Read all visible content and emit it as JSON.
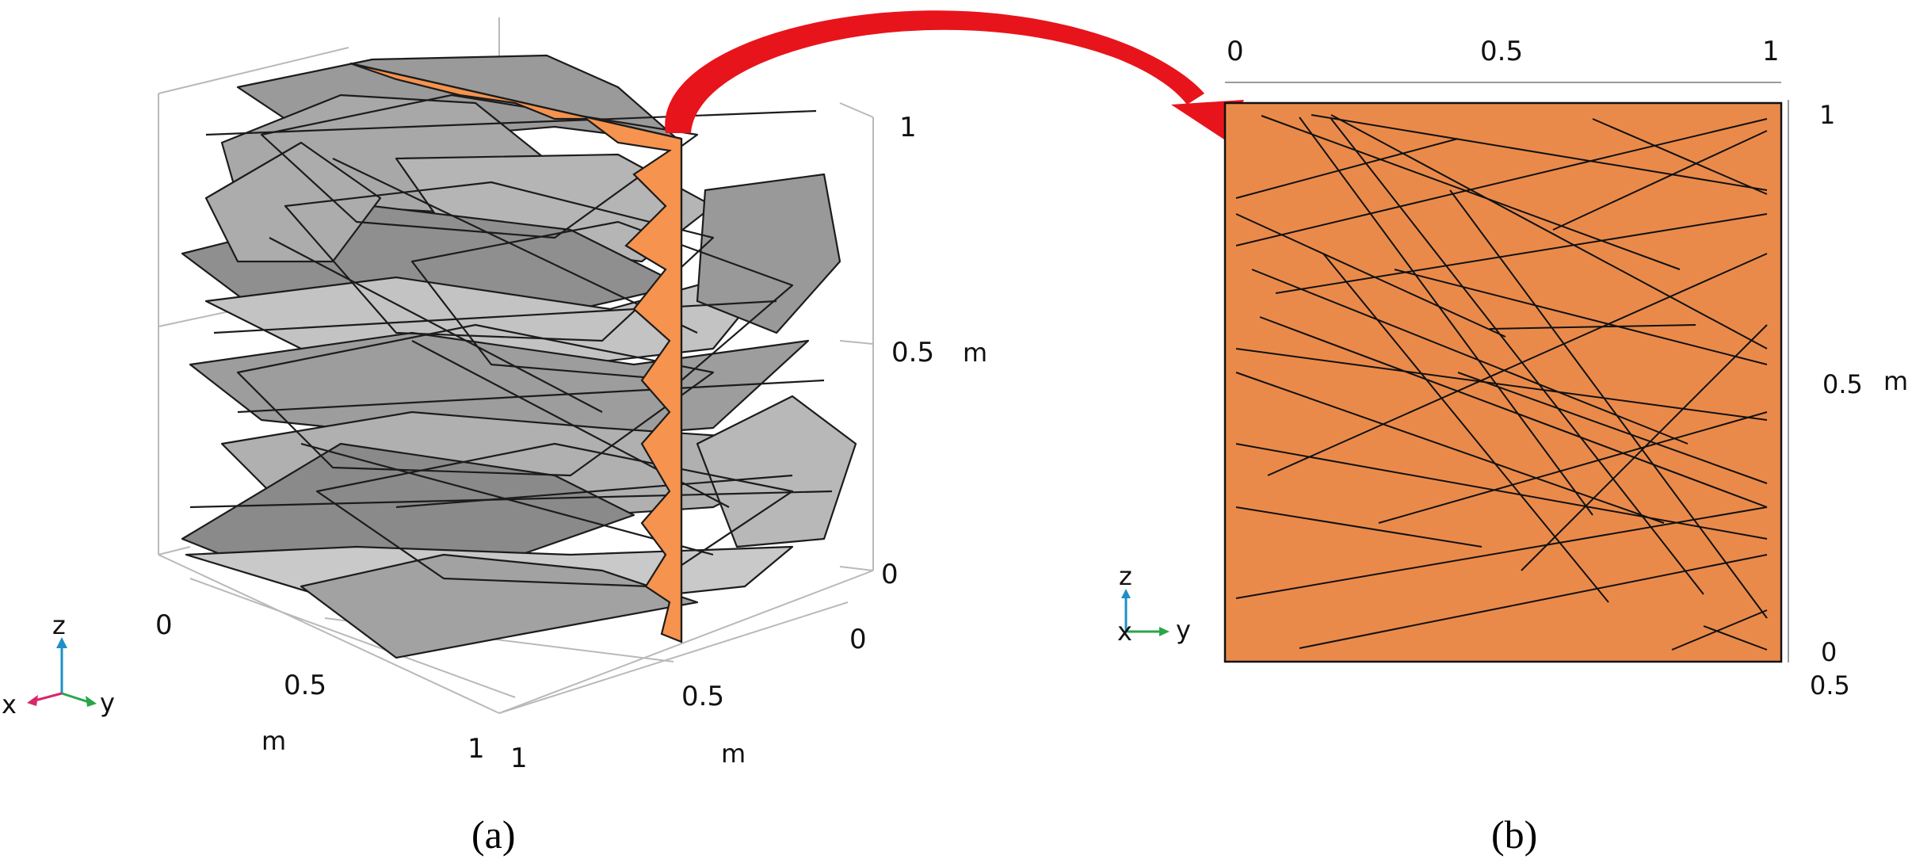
{
  "panel_a": {
    "caption": "(a)",
    "z_ticks": [
      "1",
      "0.5",
      "0"
    ],
    "z_unit": "m",
    "x_ticks": [
      "0",
      "0.5",
      "1"
    ],
    "x_unit": "m",
    "y_ticks": [
      "0",
      "0.5",
      "1"
    ],
    "y_unit": "m",
    "triad": {
      "x": "x",
      "y": "y",
      "z": "z"
    },
    "colors": {
      "fracture_dark": "#8e8e8e",
      "fracture_light": "#bdbdbd",
      "cut_plane": "#f6934e",
      "edge": "#1a1a1a"
    }
  },
  "panel_b": {
    "caption": "(b)",
    "top_ticks": [
      "0",
      "0.5",
      "1"
    ],
    "right_ticks": [
      "1",
      "0.5",
      "0"
    ],
    "right_unit": "m",
    "bottom_right_tick": "0.5",
    "triad": {
      "x": "x",
      "y": "y",
      "z": "z"
    },
    "colors": {
      "section_fill": "#ea8a4a",
      "trace_line": "#111111"
    }
  },
  "arrow": {
    "color": "#e8141b"
  }
}
